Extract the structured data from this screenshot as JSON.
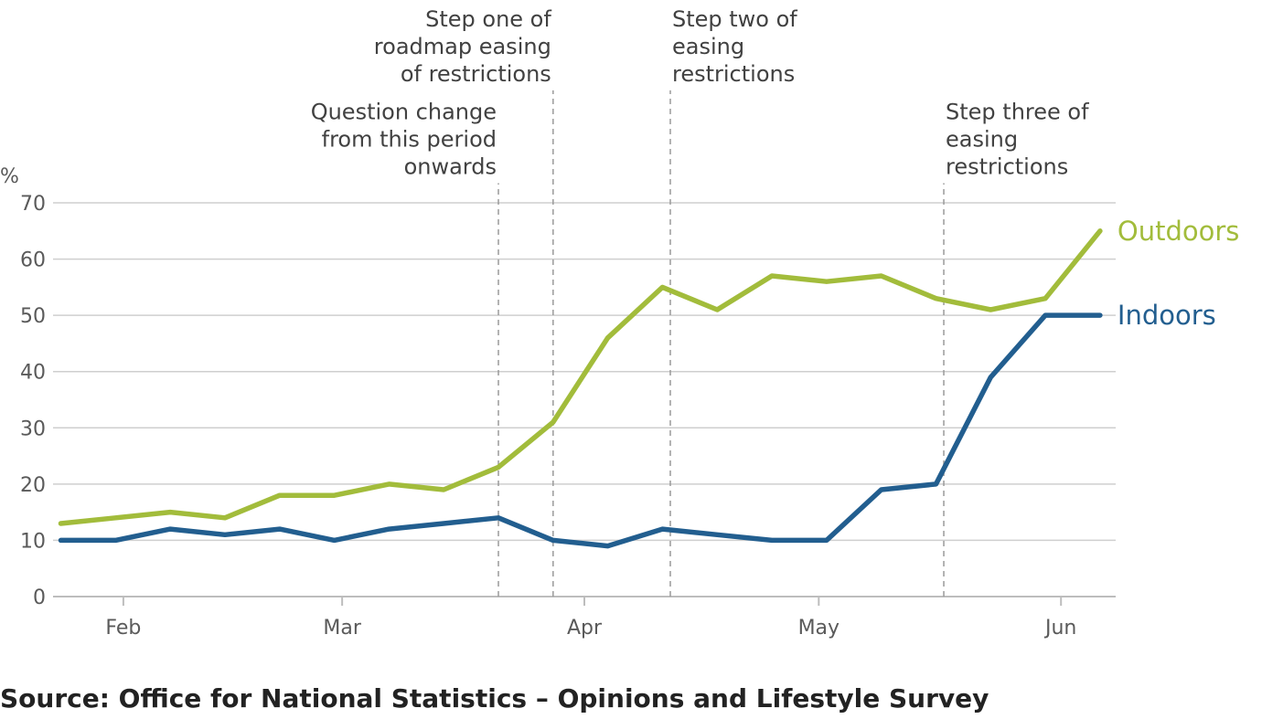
{
  "chart_data": {
    "type": "line",
    "ylabel": "%",
    "ylim": [
      0,
      70
    ],
    "yticks": [
      0,
      10,
      20,
      30,
      40,
      50,
      60,
      70
    ],
    "xlim": [
      "2021-01-23",
      "2021-06-08"
    ],
    "xticks": [
      {
        "date": "2021-02-01",
        "label": "Feb"
      },
      {
        "date": "2021-03-01",
        "label": "Mar"
      },
      {
        "date": "2021-04-01",
        "label": "Apr"
      },
      {
        "date": "2021-05-01",
        "label": "May"
      },
      {
        "date": "2021-06-01",
        "label": "Jun"
      }
    ],
    "x": [
      "2021-01-24",
      "2021-01-31",
      "2021-02-07",
      "2021-02-14",
      "2021-02-21",
      "2021-02-28",
      "2021-03-07",
      "2021-03-14",
      "2021-03-21",
      "2021-03-28",
      "2021-04-04",
      "2021-04-11",
      "2021-04-18",
      "2021-04-25",
      "2021-05-02",
      "2021-05-09",
      "2021-05-16",
      "2021-05-23",
      "2021-05-30",
      "2021-06-06"
    ],
    "series": [
      {
        "name": "Outdoors",
        "color": "#a2bc3b",
        "values": [
          13,
          14,
          15,
          14,
          18,
          18,
          20,
          19,
          23,
          31,
          46,
          55,
          51,
          57,
          56,
          57,
          53,
          51,
          53,
          65
        ]
      },
      {
        "name": "Indoors",
        "color": "#225e8f",
        "values": [
          10,
          10,
          12,
          11,
          12,
          10,
          12,
          13,
          14,
          10,
          9,
          12,
          11,
          10,
          10,
          19,
          20,
          39,
          50,
          50
        ]
      }
    ],
    "annotations": [
      {
        "date": "2021-03-21",
        "ymax": 73.5,
        "lines": [
          "Question change",
          "from this period",
          "onwards"
        ]
      },
      {
        "date": "2021-03-28",
        "ymax": 90,
        "lines": [
          "Step one of",
          "roadmap easing",
          "of restrictions"
        ]
      },
      {
        "date": "2021-04-12",
        "ymax": 90,
        "lines": [
          "Step two of",
          "easing",
          "restrictions"
        ]
      },
      {
        "date": "2021-05-17",
        "ymax": 73.5,
        "lines": [
          "Step three of",
          "easing",
          "restrictions"
        ]
      }
    ],
    "grid": true,
    "source": "Source: Office for National Statistics – Opinions and Lifestyle Survey"
  }
}
